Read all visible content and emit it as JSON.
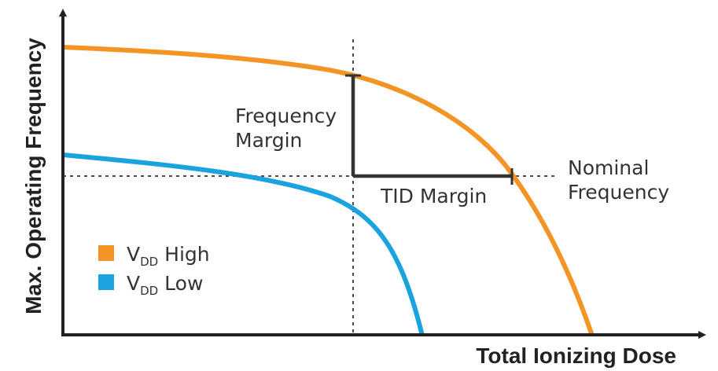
{
  "axes": {
    "x_title": "Total Ionizing Dose",
    "y_title": "Max.  Operating Frequency"
  },
  "annotations": {
    "frequency_margin": [
      "Frequency",
      "Margin"
    ],
    "tid_margin": "TID Margin",
    "nominal_frequency": [
      "Nominal",
      "Frequency"
    ]
  },
  "legend": [
    {
      "prefix": "V",
      "subscript": "DD",
      "suffix": " High",
      "color": "#f39425"
    },
    {
      "prefix": "V",
      "subscript": "DD",
      "suffix": " Low",
      "color": "#1aa3df"
    }
  ],
  "colors": {
    "axis": "#222222",
    "high_curve": "#f39425",
    "low_curve": "#1aa3df",
    "margin_bracket": "#333333",
    "dashed": "#333333"
  }
}
